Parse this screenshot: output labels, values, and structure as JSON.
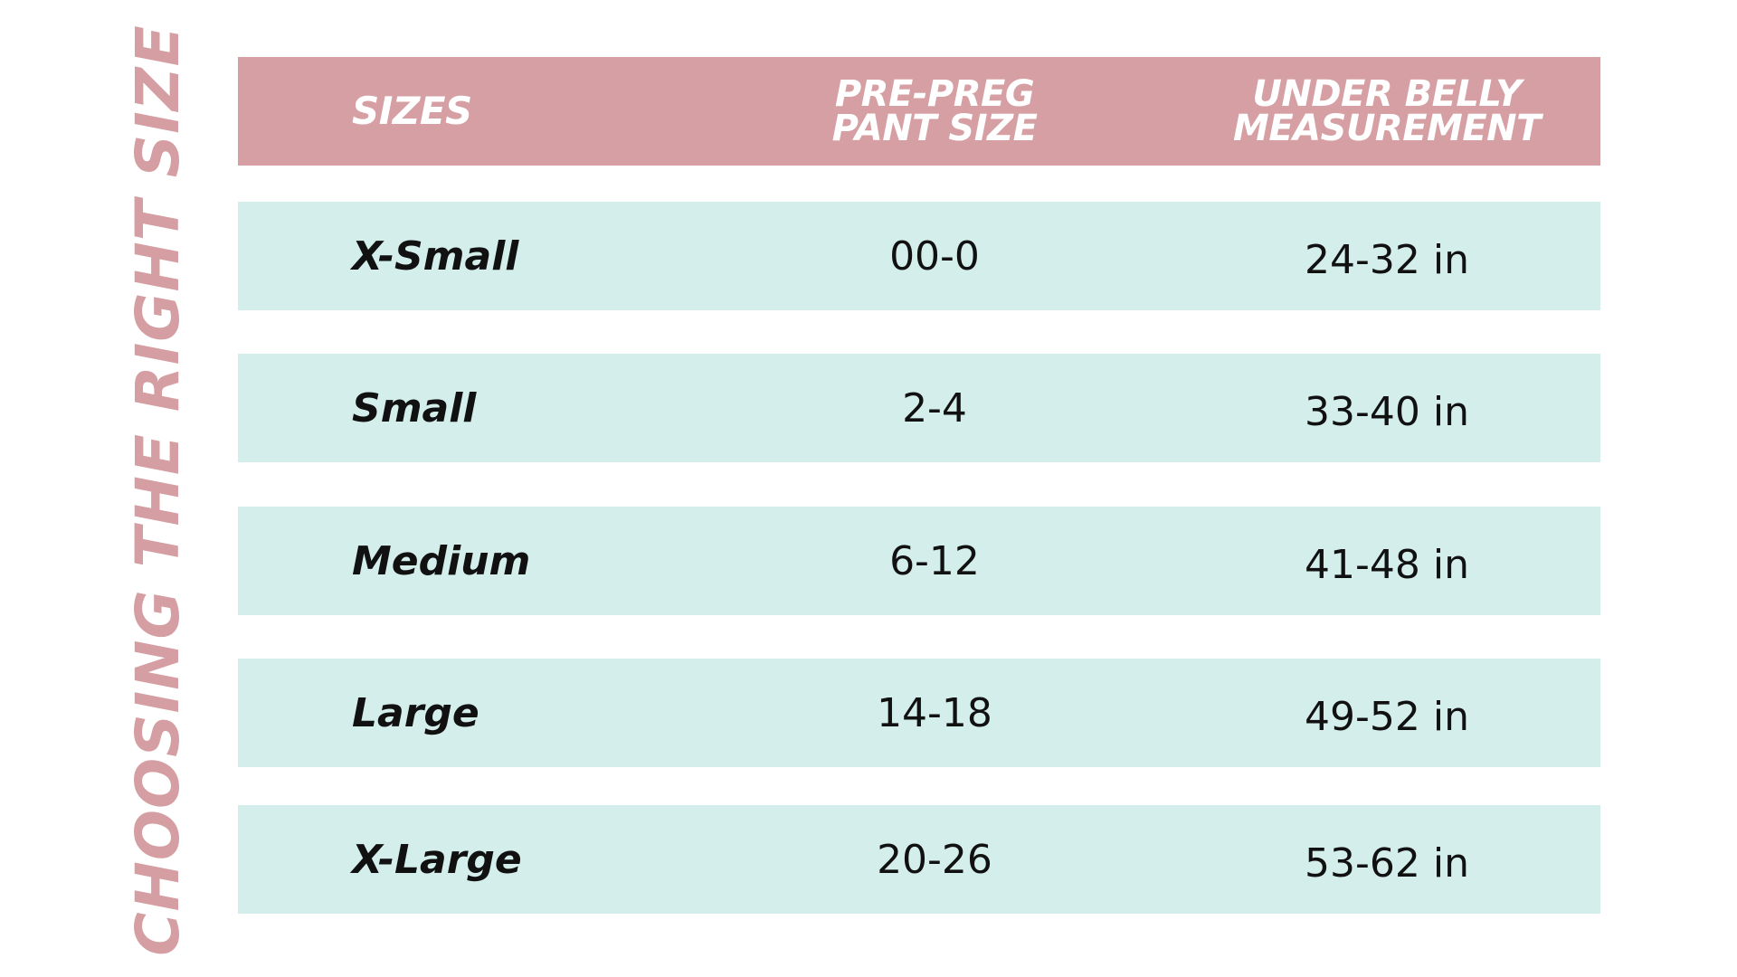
{
  "side_title": "CHOOSING THE RIGHT SIZE",
  "header": {
    "col1": "SIZES",
    "col2_line1": "PRE-PREG",
    "col2_line2": "PANT SIZE",
    "col3_line1": "UNDER BELLY",
    "col3_line2": "MEASUREMENT"
  },
  "rows": [
    {
      "size": "X-Small",
      "pant": "00-0",
      "belly": "24-32 in"
    },
    {
      "size": "Small",
      "pant": "2-4",
      "belly": "33-40 in"
    },
    {
      "size": "Medium",
      "pant": "6-12",
      "belly": "41-48 in"
    },
    {
      "size": "Large",
      "pant": "14-18",
      "belly": "49-52 in"
    },
    {
      "size": "X-Large",
      "pant": "20-26",
      "belly": "53-62 in"
    }
  ],
  "colors": {
    "header_bg": "#d69fa3",
    "row_bg": "#d4eeeb",
    "title": "#d49ea2"
  }
}
